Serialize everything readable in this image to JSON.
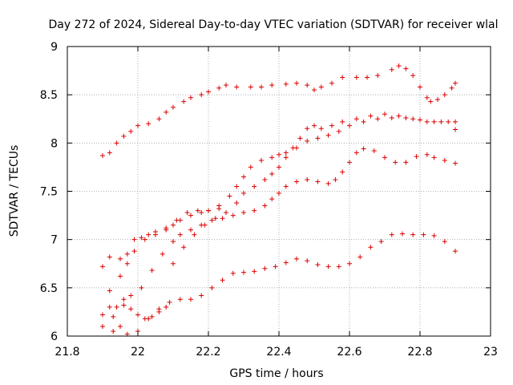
{
  "chart_data": {
    "type": "scatter",
    "title": "Day 272 of 2024, Sidereal Day-to-day VTEC variation (SDTVAR) for receiver wlal",
    "xlabel": "GPS time / hours",
    "ylabel": "SDTVAR / TECUs",
    "xlim": [
      21.8,
      23
    ],
    "ylim": [
      6,
      9
    ],
    "xticks": [
      21.8,
      22,
      22.2,
      22.4,
      22.6,
      22.8,
      23
    ],
    "xtick_labels": [
      "21.8",
      "22",
      "22.2",
      "22.4",
      "22.6",
      "22.8",
      "23"
    ],
    "yticks": [
      6,
      6.5,
      7,
      7.5,
      8,
      8.5,
      9
    ],
    "ytick_labels": [
      "6",
      "6.5",
      "7",
      "7.5",
      "8",
      "8.5",
      "9"
    ],
    "grid": true,
    "marker": "plus",
    "color": "#dd0000",
    "series": [
      {
        "name": "s1",
        "points": [
          [
            21.9,
            7.87
          ],
          [
            21.92,
            7.9
          ],
          [
            21.94,
            8.0
          ],
          [
            21.96,
            8.07
          ],
          [
            21.98,
            8.12
          ],
          [
            22.0,
            8.18
          ],
          [
            22.03,
            8.2
          ],
          [
            22.06,
            8.25
          ],
          [
            22.08,
            8.32
          ],
          [
            22.1,
            8.37
          ],
          [
            22.13,
            8.43
          ],
          [
            22.15,
            8.47
          ],
          [
            22.18,
            8.5
          ],
          [
            22.2,
            8.53
          ],
          [
            22.23,
            8.57
          ],
          [
            22.25,
            8.6
          ],
          [
            22.28,
            8.58
          ],
          [
            22.32,
            8.58
          ],
          [
            22.35,
            8.58
          ],
          [
            22.38,
            8.6
          ],
          [
            22.42,
            8.61
          ],
          [
            22.45,
            8.62
          ],
          [
            22.48,
            8.6
          ],
          [
            22.5,
            8.55
          ],
          [
            22.52,
            8.58
          ],
          [
            22.55,
            8.62
          ],
          [
            22.58,
            8.68
          ],
          [
            22.62,
            8.68
          ],
          [
            22.65,
            8.68
          ],
          [
            22.68,
            8.7
          ],
          [
            22.72,
            8.76
          ],
          [
            22.74,
            8.8
          ],
          [
            22.76,
            8.77
          ],
          [
            22.78,
            8.7
          ],
          [
            22.8,
            8.58
          ],
          [
            22.82,
            8.47
          ],
          [
            22.83,
            8.43
          ],
          [
            22.85,
            8.45
          ],
          [
            22.87,
            8.5
          ],
          [
            22.89,
            8.57
          ],
          [
            22.9,
            8.62
          ]
        ]
      },
      {
        "name": "s2",
        "points": [
          [
            21.92,
            6.47
          ],
          [
            21.95,
            6.62
          ],
          [
            21.97,
            6.75
          ],
          [
            21.99,
            6.88
          ],
          [
            22.02,
            7.0
          ],
          [
            22.05,
            7.05
          ],
          [
            22.08,
            7.1
          ],
          [
            22.1,
            7.15
          ],
          [
            22.12,
            7.2
          ],
          [
            22.15,
            7.25
          ],
          [
            22.18,
            7.28
          ],
          [
            22.2,
            7.3
          ],
          [
            22.23,
            7.35
          ],
          [
            22.26,
            7.45
          ],
          [
            22.28,
            7.55
          ],
          [
            22.3,
            7.65
          ],
          [
            22.32,
            7.75
          ],
          [
            22.35,
            7.82
          ],
          [
            22.38,
            7.85
          ],
          [
            22.4,
            7.88
          ],
          [
            22.42,
            7.9
          ],
          [
            22.44,
            7.95
          ],
          [
            22.46,
            8.05
          ],
          [
            22.48,
            8.15
          ],
          [
            22.5,
            8.18
          ],
          [
            22.52,
            8.15
          ],
          [
            22.55,
            8.18
          ],
          [
            22.58,
            8.22
          ],
          [
            22.62,
            8.25
          ],
          [
            22.66,
            8.28
          ],
          [
            22.7,
            8.3
          ],
          [
            22.74,
            8.28
          ],
          [
            22.78,
            8.25
          ],
          [
            22.82,
            8.22
          ],
          [
            22.86,
            8.22
          ],
          [
            22.9,
            8.22
          ]
        ]
      },
      {
        "name": "s3",
        "points": [
          [
            22.1,
            6.75
          ],
          [
            22.13,
            6.92
          ],
          [
            22.16,
            7.05
          ],
          [
            22.19,
            7.15
          ],
          [
            22.22,
            7.22
          ],
          [
            22.25,
            7.28
          ],
          [
            22.28,
            7.38
          ],
          [
            22.3,
            7.48
          ],
          [
            22.33,
            7.55
          ],
          [
            22.36,
            7.62
          ],
          [
            22.38,
            7.68
          ],
          [
            22.4,
            7.75
          ],
          [
            22.42,
            7.85
          ],
          [
            22.45,
            7.95
          ],
          [
            22.48,
            8.02
          ],
          [
            22.51,
            8.05
          ],
          [
            22.54,
            8.08
          ],
          [
            22.57,
            8.12
          ],
          [
            22.6,
            8.18
          ],
          [
            22.64,
            8.22
          ],
          [
            22.68,
            8.25
          ],
          [
            22.72,
            8.26
          ],
          [
            22.76,
            8.26
          ],
          [
            22.8,
            8.24
          ],
          [
            22.84,
            8.22
          ],
          [
            22.88,
            8.22
          ],
          [
            22.9,
            8.14
          ]
        ]
      },
      {
        "name": "s4",
        "points": [
          [
            21.93,
            6.2
          ],
          [
            21.96,
            6.32
          ],
          [
            21.98,
            6.42
          ],
          [
            22.01,
            6.5
          ],
          [
            22.04,
            6.68
          ],
          [
            22.07,
            6.85
          ],
          [
            22.1,
            6.98
          ],
          [
            22.12,
            7.05
          ],
          [
            22.15,
            7.1
          ],
          [
            22.18,
            7.15
          ],
          [
            22.21,
            7.2
          ],
          [
            22.24,
            7.22
          ],
          [
            22.27,
            7.25
          ],
          [
            22.3,
            7.28
          ],
          [
            22.33,
            7.3
          ],
          [
            22.36,
            7.35
          ],
          [
            22.38,
            7.42
          ],
          [
            22.4,
            7.48
          ],
          [
            22.42,
            7.55
          ],
          [
            22.45,
            7.6
          ],
          [
            22.48,
            7.62
          ],
          [
            22.51,
            7.6
          ],
          [
            22.54,
            7.58
          ],
          [
            22.56,
            7.62
          ],
          [
            22.58,
            7.7
          ],
          [
            22.6,
            7.8
          ],
          [
            22.62,
            7.9
          ],
          [
            22.64,
            7.94
          ],
          [
            22.67,
            7.92
          ],
          [
            22.7,
            7.85
          ],
          [
            22.73,
            7.8
          ],
          [
            22.76,
            7.8
          ],
          [
            22.79,
            7.86
          ],
          [
            22.82,
            7.88
          ],
          [
            22.84,
            7.85
          ],
          [
            22.87,
            7.82
          ],
          [
            22.9,
            7.79
          ]
        ]
      },
      {
        "name": "s5",
        "points": [
          [
            21.9,
            6.1
          ],
          [
            21.93,
            6.05
          ],
          [
            21.95,
            6.1
          ],
          [
            21.97,
            6.02
          ],
          [
            22.0,
            6.05
          ],
          [
            22.03,
            6.18
          ],
          [
            22.06,
            6.28
          ],
          [
            22.09,
            6.35
          ],
          [
            22.12,
            6.38
          ],
          [
            22.15,
            6.38
          ],
          [
            22.18,
            6.42
          ],
          [
            22.21,
            6.5
          ],
          [
            22.24,
            6.58
          ],
          [
            22.27,
            6.65
          ],
          [
            22.3,
            6.66
          ],
          [
            22.33,
            6.67
          ],
          [
            22.36,
            6.7
          ],
          [
            22.39,
            6.72
          ],
          [
            22.42,
            6.76
          ],
          [
            22.45,
            6.8
          ],
          [
            22.48,
            6.78
          ],
          [
            22.51,
            6.74
          ],
          [
            22.54,
            6.72
          ],
          [
            22.57,
            6.72
          ],
          [
            22.6,
            6.75
          ],
          [
            22.63,
            6.82
          ],
          [
            22.66,
            6.92
          ],
          [
            22.69,
            6.98
          ],
          [
            22.72,
            7.05
          ],
          [
            22.75,
            7.06
          ],
          [
            22.78,
            7.05
          ],
          [
            22.81,
            7.05
          ],
          [
            22.84,
            7.04
          ],
          [
            22.87,
            6.98
          ],
          [
            22.9,
            6.88
          ]
        ]
      },
      {
        "name": "s6",
        "points": [
          [
            21.9,
            6.72
          ],
          [
            21.92,
            6.82
          ],
          [
            21.95,
            6.8
          ],
          [
            21.97,
            6.85
          ],
          [
            21.99,
            7.0
          ],
          [
            22.01,
            7.02
          ],
          [
            22.03,
            7.05
          ],
          [
            22.05,
            7.08
          ],
          [
            22.08,
            7.12
          ],
          [
            22.11,
            7.2
          ],
          [
            22.14,
            7.28
          ],
          [
            22.17,
            7.3
          ],
          [
            22.2,
            7.3
          ],
          [
            22.23,
            7.32
          ]
        ]
      },
      {
        "name": "s7",
        "points": [
          [
            21.9,
            6.22
          ],
          [
            21.92,
            6.3
          ],
          [
            21.94,
            6.3
          ],
          [
            21.96,
            6.38
          ],
          [
            21.98,
            6.28
          ],
          [
            22.0,
            6.22
          ],
          [
            22.02,
            6.18
          ],
          [
            22.04,
            6.2
          ],
          [
            22.06,
            6.25
          ],
          [
            22.08,
            6.3
          ]
        ]
      }
    ]
  }
}
